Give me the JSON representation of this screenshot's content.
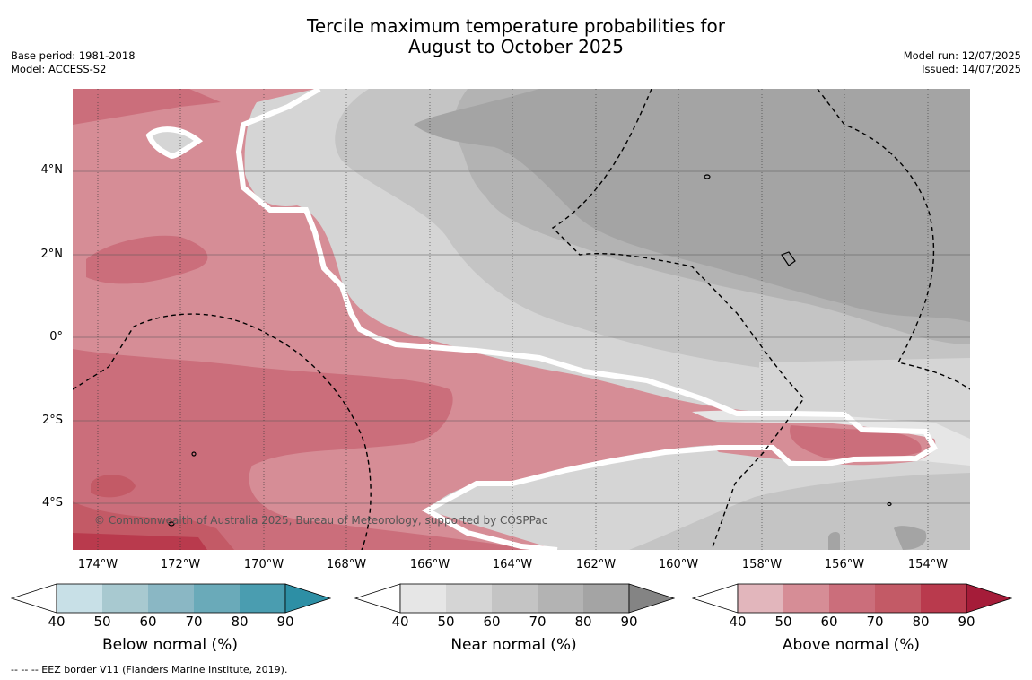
{
  "title": {
    "line1": "Tercile maximum temperature probabilities for",
    "line2": "August to October 2025"
  },
  "meta": {
    "base_period": "Base period: 1981-2018",
    "model": "Model: ACCESS-S2",
    "model_run": "Model run: 12/07/2025",
    "issued": "Issued: 14/07/2025"
  },
  "map": {
    "y_labels": [
      "4°N",
      "2°N",
      "0°",
      "2°S",
      "4°S"
    ],
    "x_labels": [
      "174°W",
      "172°W",
      "170°W",
      "168°W",
      "166°W",
      "164°W",
      "162°W",
      "160°W",
      "158°W",
      "156°W",
      "154°W"
    ],
    "copyright": "© Commonwealth of Australia 2025, Bureau of Meteorology, supported by COSPPac",
    "colors": {
      "below_near_gray_40": "#e6e6e6",
      "near_50": "#d5d5d5",
      "near_60": "#c4c4c4",
      "near_70": "#b3b3b3",
      "near_80": "#a4a4a4",
      "above_40": "#e2b6bc",
      "above_50": "#d68d96",
      "above_60": "#cb6e7b",
      "above_70": "#c35a66",
      "above_80": "#b93a4d"
    }
  },
  "legends": [
    {
      "title": "Below normal (%)",
      "ticks": [
        "40",
        "50",
        "60",
        "70",
        "80",
        "90"
      ],
      "colors": [
        "#ffffff",
        "#c8e0e7",
        "#a8c9d0",
        "#8ab7c4",
        "#6aaab9",
        "#4a9db0",
        "#2d8fa5"
      ]
    },
    {
      "title": "Near normal (%)",
      "ticks": [
        "40",
        "50",
        "60",
        "70",
        "80",
        "90"
      ],
      "colors": [
        "#ffffff",
        "#e6e6e6",
        "#d5d5d5",
        "#c4c4c4",
        "#b3b3b3",
        "#a4a4a4",
        "#848484"
      ]
    },
    {
      "title": "Above normal (%)",
      "ticks": [
        "40",
        "50",
        "60",
        "70",
        "80",
        "90"
      ],
      "colors": [
        "#ffffff",
        "#e2b6bc",
        "#d68d96",
        "#cb6e7b",
        "#c35a66",
        "#b93a4d",
        "#a51c39"
      ]
    }
  ],
  "footnote": "--  --  -- EEZ border V11 (Flanders Marine Institute, 2019)."
}
